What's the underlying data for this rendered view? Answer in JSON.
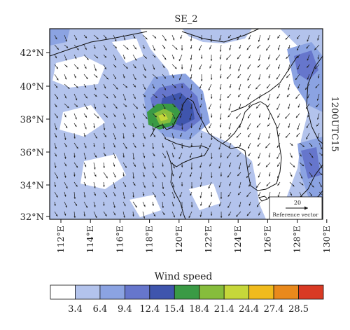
{
  "title": "SE_2",
  "time_label": "1200UTC15",
  "lat_labels": [
    "42°N",
    "40°N",
    "38°N",
    "36°N",
    "34°N",
    "32°N"
  ],
  "lon_labels": [
    "112°E",
    "114°E",
    "116°E",
    "118°E",
    "120°E",
    "122°E",
    "124°E",
    "126°E",
    "128°E",
    "130°E"
  ],
  "reference_vector": {
    "value": "20",
    "label": "Reference vector"
  },
  "colorbar": {
    "title": "Wind speed",
    "ticks": [
      "3.4",
      "6.4",
      "9.4",
      "12.4",
      "15.4",
      "18.4",
      "21.4",
      "24.4",
      "27.4",
      "28.5"
    ],
    "colors": [
      "#ffffff",
      "#b3c3ec",
      "#8ba3e2",
      "#6676cc",
      "#3f55ad",
      "#3a9a45",
      "#86bd3c",
      "#c6d73a",
      "#f0bb1d",
      "#e9891c",
      "#d93a24"
    ]
  },
  "palette": {
    "land": "#ffffff",
    "frame": "#111111",
    "vector": "#222222",
    "coast": "#111111"
  }
}
